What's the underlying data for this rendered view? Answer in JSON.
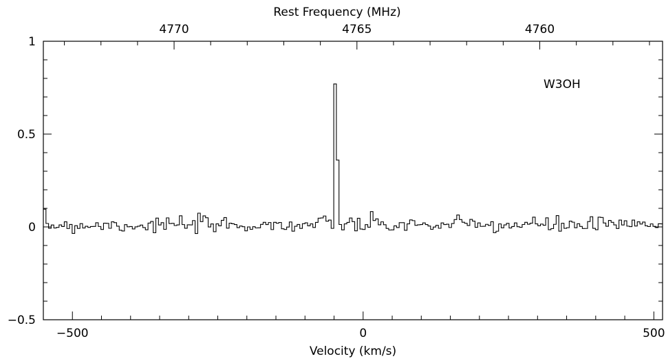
{
  "chart_data": {
    "type": "line",
    "style": "step",
    "annotation": "W3OH",
    "xlabel": "Velocity (km/s)",
    "x2label": "Rest Frequency (MHz)",
    "xlim": [
      -550,
      515
    ],
    "ylim": [
      -0.5,
      1
    ],
    "x_ticks": [
      -500,
      0,
      500
    ],
    "x_tick_labels": [
      "−500",
      "0",
      "500"
    ],
    "y_ticks": [
      -0.5,
      0,
      0.5,
      1
    ],
    "y_tick_labels": [
      "−0.5",
      "0",
      "0.5",
      "1"
    ],
    "x2_ticks": [
      4770,
      4765,
      4760
    ],
    "x2_tick_labels": [
      "4770",
      "4765",
      "4760"
    ],
    "freq_axis": {
      "rest_freq_mhz": 4765.562,
      "velocity_ref_kms": -46,
      "mhz_per_kms": -0.0159
    },
    "grid": false,
    "legend": "none",
    "series": [
      {
        "channel_width_kms": 4.5,
        "noise_rms": 0.022,
        "baseline": 0.01,
        "peak_channels": [
          {
            "x": -49.0,
            "y": 0.77
          },
          {
            "x": -44.5,
            "y": 0.36
          }
        ]
      }
    ]
  }
}
